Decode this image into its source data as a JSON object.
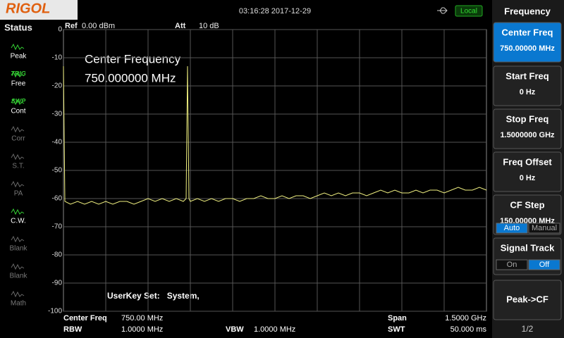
{
  "header": {
    "logo": "RIGOL",
    "datetime": "03:16:28 2017-12-29",
    "mode": "Local"
  },
  "status": {
    "title": "Status",
    "items": [
      {
        "top": "",
        "label": "Peak",
        "active": true
      },
      {
        "top": "TRIG",
        "label": "Free",
        "active": true
      },
      {
        "top": "SWP",
        "label": "Cont",
        "active": true
      },
      {
        "top": "",
        "label": "Corr",
        "active": false
      },
      {
        "top": "",
        "label": "S.T.",
        "active": false
      },
      {
        "top": "",
        "label": "PA",
        "active": false
      },
      {
        "top": "",
        "label": "C.W.",
        "active": true
      },
      {
        "top": "",
        "label": "Blank",
        "active": false
      },
      {
        "top": "",
        "label": "Blank",
        "active": false
      },
      {
        "top": "",
        "label": "Math",
        "active": false
      }
    ]
  },
  "plot": {
    "ref_label": "Ref",
    "ref_value": "0.00 dBm",
    "att_label": "Att",
    "att_value": "10 dB",
    "annotation_line1": "Center Frequency",
    "annotation_line2": "750.000000 MHz",
    "userkey": "UserKey Set:   System,",
    "ylim": [
      -100,
      0
    ],
    "yticks": [
      0,
      -10,
      -20,
      -30,
      -40,
      -50,
      -60,
      -70,
      -80,
      -90,
      -100
    ],
    "xlim": [
      0,
      1500
    ],
    "trace_color": "#f0f080",
    "trace": {
      "x": [
        0,
        5,
        25,
        50,
        75,
        100,
        125,
        150,
        175,
        200,
        225,
        250,
        275,
        300,
        325,
        350,
        375,
        400,
        425,
        435,
        440,
        445,
        450,
        475,
        500,
        525,
        550,
        575,
        600,
        625,
        650,
        675,
        700,
        725,
        750,
        775,
        800,
        825,
        850,
        875,
        900,
        925,
        950,
        975,
        1000,
        1025,
        1050,
        1075,
        1100,
        1125,
        1150,
        1175,
        1200,
        1225,
        1250,
        1275,
        1300,
        1325,
        1350,
        1375,
        1400,
        1425,
        1450,
        1475,
        1500
      ],
      "values": [
        -13,
        -61,
        -62,
        -61,
        -62,
        -61,
        -62,
        -61,
        -62,
        -61,
        -61,
        -62,
        -61,
        -60,
        -61,
        -60,
        -61,
        -60,
        -61,
        -60,
        -13,
        -60,
        -61,
        -60,
        -61,
        -60,
        -61,
        -60,
        -60,
        -61,
        -60,
        -60,
        -59,
        -60,
        -60,
        -59,
        -60,
        -59,
        -59,
        -60,
        -59,
        -58,
        -59,
        -58,
        -59,
        -58,
        -58,
        -59,
        -58,
        -57,
        -58,
        -57,
        -58,
        -58,
        -57,
        -58,
        -57,
        -57,
        -58,
        -57,
        -56,
        -57,
        -57,
        -56,
        -57
      ]
    }
  },
  "footer": {
    "center_label": "Center Freq",
    "center_value": "750.00 MHz",
    "rbw_label": "RBW",
    "rbw_value": "1.0000 MHz",
    "vbw_label": "VBW",
    "vbw_value": "1.0000 MHz",
    "span_label": "Span",
    "span_value": "1.5000 GHz",
    "swt_label": "SWT",
    "swt_value": "50.000 ms"
  },
  "menu": {
    "title": "Frequency",
    "page": "1/2",
    "items": [
      {
        "label": "Center Freq",
        "value": "750.00000 MHz",
        "active": true
      },
      {
        "label": "Start Freq",
        "value": "0 Hz"
      },
      {
        "label": "Stop Freq",
        "value": "1.5000000 GHz"
      },
      {
        "label": "Freq Offset",
        "value": "0 Hz"
      },
      {
        "label": "CF Step",
        "value": "150.00000 MHz",
        "options": [
          "Auto",
          "Manual"
        ],
        "selected": 0
      },
      {
        "label": "Signal Track",
        "options": [
          "On",
          "Off"
        ],
        "selected": 1
      },
      {
        "label": "Peak->CF"
      }
    ]
  }
}
